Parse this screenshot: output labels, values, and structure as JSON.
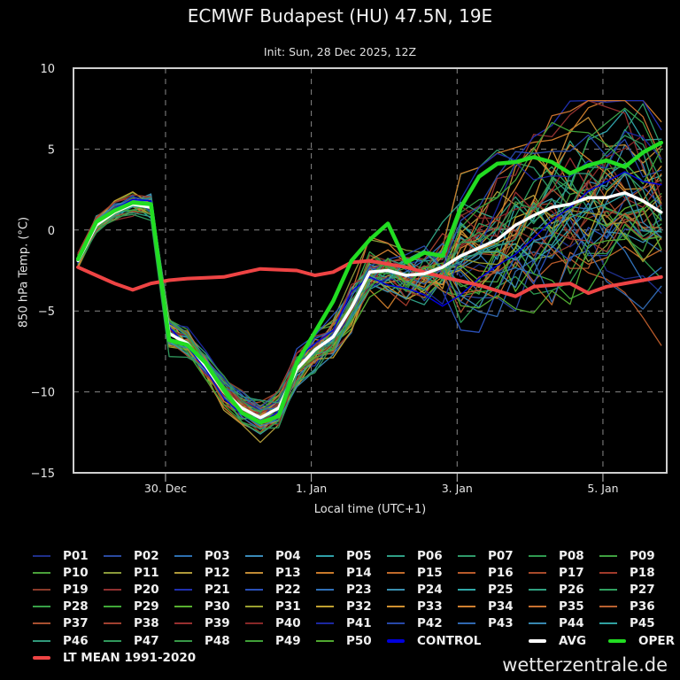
{
  "chart_data": {
    "type": "line",
    "title": "ECMWF Budapest (HU) 47.5N, 19E",
    "subtitle": "Init: Sun, 28 Dec 2025, 12Z",
    "xlabel": "Local time (UTC+1)",
    "ylabel": "850 hPa Temp. (°C)",
    "ylim": [
      -15,
      10
    ],
    "yticks": [
      -15,
      -10,
      -5,
      0,
      5,
      10
    ],
    "x_step_hours": 6,
    "xlim_steps": [
      -0.25,
      32.3
    ],
    "xticks": [
      {
        "step": 4.8,
        "label": "30. Dec"
      },
      {
        "step": 12.8,
        "label": "1. Jan"
      },
      {
        "step": 20.8,
        "label": "3. Jan"
      },
      {
        "step": 28.8,
        "label": "5. Jan"
      }
    ],
    "grid": true,
    "legend_position": "bottom",
    "highlight_series": [
      {
        "name": "OPER",
        "color": "#22dd22",
        "width": 4.5,
        "values": [
          -1.8,
          0.5,
          1.2,
          1.7,
          1.6,
          -6.8,
          -7.1,
          -8.2,
          -9.9,
          -11.3,
          -11.9,
          -11.5,
          -8.2,
          -6.3,
          -4.4,
          -1.9,
          -0.6,
          0.4,
          -2.0,
          -1.4,
          -1.6,
          1.4,
          3.3,
          4.1,
          4.2,
          4.5,
          4.2,
          3.5,
          4.0,
          4.3,
          3.9,
          4.8,
          5.4
        ]
      },
      {
        "name": "AVG",
        "color": "#ffffff",
        "width": 3.5,
        "values": [
          -1.9,
          0.3,
          1.1,
          1.6,
          1.4,
          -6.4,
          -7.0,
          -8.4,
          -10.0,
          -11.0,
          -11.6,
          -11.0,
          -8.6,
          -7.4,
          -6.6,
          -4.8,
          -2.6,
          -2.5,
          -2.8,
          -2.7,
          -2.3,
          -1.6,
          -1.1,
          -0.6,
          0.3,
          0.9,
          1.4,
          1.6,
          2.0,
          2.0,
          2.3,
          1.8,
          1.1
        ]
      },
      {
        "name": "LT MEAN 1991-2020",
        "color": "#ee4444",
        "width": 4,
        "values": [
          -2.3,
          -2.8,
          -3.3,
          -3.7,
          -3.3,
          -3.1,
          -3.0,
          -2.95,
          -2.9,
          -2.65,
          -2.4,
          -2.45,
          -2.5,
          -2.8,
          -2.6,
          -2.0,
          -1.9,
          -2.1,
          -2.3,
          -2.6,
          -2.9,
          -3.15,
          -3.4,
          -3.75,
          -4.1,
          -3.5,
          -3.4,
          -3.3,
          -3.9,
          -3.5,
          -3.3,
          -3.1,
          -2.9
        ]
      }
    ],
    "control": {
      "name": "CONTROL",
      "color": "#0000dd",
      "values": [
        -2.0,
        0.4,
        1.3,
        1.9,
        1.8,
        -6.0,
        -7.2,
        -8.6,
        -10.4,
        -11.4,
        -12.0,
        -11.2,
        -8.0,
        -7.0,
        -6.2,
        -3.8,
        -2.9,
        -3.4,
        -3.6,
        -4.0,
        -4.7,
        -4.0,
        -3.0,
        -2.2,
        -1.5,
        -0.5,
        0.6,
        1.4,
        2.4,
        3.0,
        3.6,
        3.0,
        2.8
      ]
    },
    "members": [
      {
        "name": "P01",
        "color": "#1f2f8a"
      },
      {
        "name": "P02",
        "color": "#2a4aa0"
      },
      {
        "name": "P03",
        "color": "#2d6fb0"
      },
      {
        "name": "P04",
        "color": "#3a8ab8"
      },
      {
        "name": "P05",
        "color": "#2fa0a8"
      },
      {
        "name": "P06",
        "color": "#2f9f86"
      },
      {
        "name": "P07",
        "color": "#2f9a6a"
      },
      {
        "name": "P08",
        "color": "#2f9a50"
      },
      {
        "name": "P09",
        "color": "#3fa040"
      },
      {
        "name": "P10",
        "color": "#4aa03a"
      },
      {
        "name": "P11",
        "color": "#8a9a3a"
      },
      {
        "name": "P12",
        "color": "#b09a3a"
      },
      {
        "name": "P13",
        "color": "#c08a34"
      },
      {
        "name": "P14",
        "color": "#c97a2a"
      },
      {
        "name": "P15",
        "color": "#c06a2a"
      },
      {
        "name": "P16",
        "color": "#b85a2a"
      },
      {
        "name": "P17",
        "color": "#a84a2a"
      },
      {
        "name": "P18",
        "color": "#a03a2a"
      },
      {
        "name": "P19",
        "color": "#8a3a2a"
      },
      {
        "name": "P20",
        "color": "#903030"
      },
      {
        "name": "P21",
        "color": "#2030b0"
      },
      {
        "name": "P22",
        "color": "#2a50b8"
      },
      {
        "name": "P23",
        "color": "#3070b8"
      },
      {
        "name": "P24",
        "color": "#3a90b0"
      },
      {
        "name": "P25",
        "color": "#30a8a8"
      },
      {
        "name": "P26",
        "color": "#30a080"
      },
      {
        "name": "P27",
        "color": "#30a060"
      },
      {
        "name": "P28",
        "color": "#38a048"
      },
      {
        "name": "P29",
        "color": "#40a838"
      },
      {
        "name": "P30",
        "color": "#58b030"
      },
      {
        "name": "P31",
        "color": "#9aa030"
      },
      {
        "name": "P32",
        "color": "#c0a030"
      },
      {
        "name": "P33",
        "color": "#d09030"
      },
      {
        "name": "P34",
        "color": "#d08030"
      },
      {
        "name": "P35",
        "color": "#c87030"
      },
      {
        "name": "P36",
        "color": "#b86030"
      },
      {
        "name": "P37",
        "color": "#a85030"
      },
      {
        "name": "P38",
        "color": "#a04030"
      },
      {
        "name": "P39",
        "color": "#983030"
      },
      {
        "name": "P40",
        "color": "#882828"
      },
      {
        "name": "P41",
        "color": "#1c28a0"
      },
      {
        "name": "P42",
        "color": "#2848a8"
      },
      {
        "name": "P43",
        "color": "#3068b0"
      },
      {
        "name": "P44",
        "color": "#3888b0"
      },
      {
        "name": "P45",
        "color": "#30a0a0"
      },
      {
        "name": "P46",
        "color": "#30987a"
      },
      {
        "name": "P47",
        "color": "#30985c"
      },
      {
        "name": "P48",
        "color": "#389848"
      },
      {
        "name": "P49",
        "color": "#40a038"
      },
      {
        "name": "P50",
        "color": "#50a830"
      }
    ],
    "member_spread": [
      0.6,
      0.6,
      0.5,
      0.6,
      0.8,
      0.9,
      0.8,
      0.9,
      0.9,
      0.9,
      0.9,
      1.0,
      1.1,
      1.2,
      1.3,
      1.4,
      1.5,
      1.5,
      1.6,
      1.8,
      2.0,
      2.3,
      2.5,
      2.7,
      2.9,
      3.0,
      3.1,
      3.2,
      3.2,
      3.3,
      3.3,
      3.4,
      3.4
    ]
  },
  "legend": {
    "rows": [
      [
        "P01",
        "P02",
        "P03",
        "P04",
        "P05",
        "P06",
        "P07",
        "P08",
        "P09"
      ],
      [
        "P10",
        "P11",
        "P12",
        "P13",
        "P14",
        "P15",
        "P16",
        "P17",
        "P18"
      ],
      [
        "P19",
        "P20",
        "P21",
        "P22",
        "P23",
        "P24",
        "P25",
        "P26",
        "P27"
      ],
      [
        "P28",
        "P29",
        "P30",
        "P31",
        "P32",
        "P33",
        "P34",
        "P35",
        "P36"
      ],
      [
        "P37",
        "P38",
        "P39",
        "P40",
        "P41",
        "P42",
        "P43",
        "P44",
        "P45"
      ],
      [
        "P46",
        "P47",
        "P48",
        "P49",
        "P50",
        "CONTROL",
        "AVG",
        "OPER"
      ],
      [
        "LT MEAN 1991-2020"
      ]
    ]
  },
  "footer": "wetterzentrale.de"
}
